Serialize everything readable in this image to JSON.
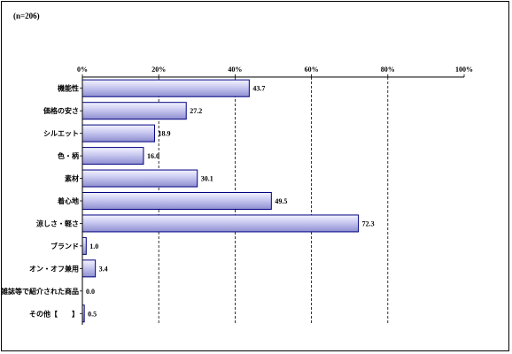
{
  "note": "(n=206)",
  "chart_data": {
    "type": "bar",
    "orientation": "horizontal",
    "categories": [
      "機能性",
      "価格の安さ",
      "シルエット",
      "色・柄",
      "素材",
      "着心地",
      "涼しさ・軽さ",
      "ブランド",
      "オン・オフ兼用",
      "雑誌等で紹介された商品",
      "その他【　　】"
    ],
    "values": [
      43.7,
      27.2,
      18.9,
      16.0,
      30.1,
      49.5,
      72.3,
      1.0,
      3.4,
      0.0,
      0.5
    ],
    "value_labels": [
      "43.7",
      "27.2",
      "18.9",
      "16.0",
      "30.1",
      "49.5",
      "72.3",
      "1.0",
      "3.4",
      "0.0",
      "0.5"
    ],
    "xlim": [
      0,
      100
    ],
    "xticks": [
      0,
      20,
      40,
      60,
      80,
      100
    ],
    "xtick_labels": [
      "0%",
      "20%",
      "40%",
      "60%",
      "80%",
      "100%"
    ],
    "grid": true,
    "bar_color": "#c8c8f0",
    "bar_edge": "#000080"
  }
}
